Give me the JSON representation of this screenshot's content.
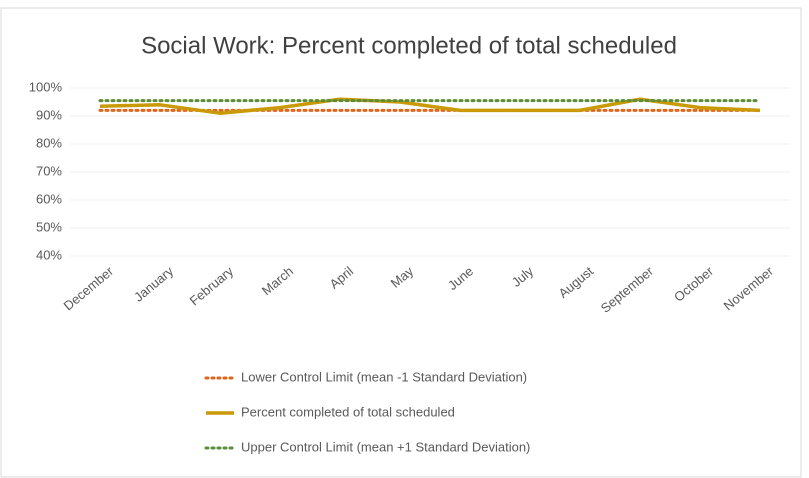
{
  "chart_data": {
    "type": "line",
    "title": "Social Work: Percent completed of total scheduled",
    "categories": [
      "December",
      "January",
      "February",
      "March",
      "April",
      "May",
      "June",
      "July",
      "August",
      "September",
      "October",
      "November"
    ],
    "series": [
      {
        "name": "Lower Control Limit (mean -1 Standard Deviation)",
        "color": "#e0661c",
        "style": "dotted",
        "values": [
          92,
          92,
          92,
          92,
          92,
          92,
          92,
          92,
          92,
          92,
          92,
          92
        ]
      },
      {
        "name": "Percent completed of total scheduled",
        "color": "#c99a06",
        "style": "solid",
        "values": [
          93.5,
          94,
          91,
          93,
          96,
          95,
          92,
          92,
          92,
          96,
          93,
          92
        ]
      },
      {
        "name": "Upper Control Limit (mean +1 Standard Deviation)",
        "color": "#5b8c38",
        "style": "dotted",
        "values": [
          95.5,
          95.5,
          95.5,
          95.5,
          95.5,
          95.5,
          95.5,
          95.5,
          95.5,
          95.5,
          95.5,
          95.5
        ]
      }
    ],
    "ylim": [
      40,
      100
    ],
    "yticks": [
      {
        "value": 40,
        "label": "40%"
      },
      {
        "value": 50,
        "label": "50%"
      },
      {
        "value": 60,
        "label": "60%"
      },
      {
        "value": 70,
        "label": "70%"
      },
      {
        "value": 80,
        "label": "80%"
      },
      {
        "value": 90,
        "label": "90%"
      },
      {
        "value": 100,
        "label": "100%"
      }
    ],
    "grid": true,
    "legend": "bottom"
  }
}
